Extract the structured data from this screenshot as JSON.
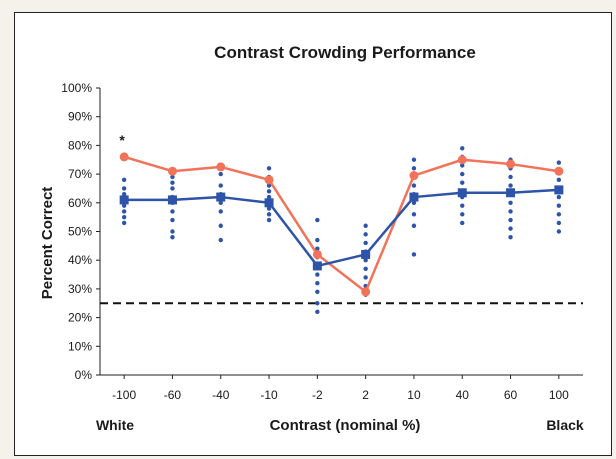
{
  "chart_data": {
    "type": "line",
    "title": "Contrast Crowding Performance",
    "xlabel": "Contrast (nominal %)",
    "ylabel": "Percent Correct",
    "left_end_label": "White",
    "right_end_label": "Black",
    "significance_marker": "*",
    "categories": [
      "-100",
      "-60",
      "-40",
      "-10",
      "-2",
      "2",
      "10",
      "40",
      "60",
      "100"
    ],
    "yticks": [
      "0%",
      "10%",
      "20%",
      "30%",
      "40%",
      "50%",
      "60%",
      "70%",
      "80%",
      "90%",
      "100%"
    ],
    "ylim": [
      0,
      100
    ],
    "chance_level": 25,
    "grid": false,
    "series": [
      {
        "color": "#f2735a",
        "marker": "circle",
        "values": [
          76,
          71,
          72.5,
          68,
          42,
          29,
          69.5,
          75,
          73.5,
          71
        ]
      },
      {
        "color": "#2d54a8",
        "marker": "square",
        "values": [
          61,
          61,
          62,
          60,
          38,
          42,
          62,
          63.5,
          63.5,
          64.5
        ]
      }
    ],
    "individual_points": {
      "color": "#2d54a8",
      "values": [
        [
          53,
          55,
          57,
          59,
          61,
          63,
          65,
          68
        ],
        [
          48,
          50,
          54,
          57,
          60,
          62,
          65,
          67,
          69,
          71
        ],
        [
          47,
          52,
          57,
          60,
          63,
          66,
          70
        ],
        [
          54,
          56,
          58,
          60,
          62,
          64,
          66,
          69,
          72
        ],
        [
          22,
          25,
          29,
          32,
          35,
          38,
          41,
          44,
          47,
          54
        ],
        [
          28,
          31,
          34,
          37,
          40,
          43,
          46,
          49,
          52
        ],
        [
          42,
          52,
          56,
          60,
          63,
          66,
          69,
          72,
          75
        ],
        [
          53,
          56,
          59,
          62,
          64,
          67,
          70,
          73,
          76,
          79
        ],
        [
          48,
          51,
          54,
          57,
          60,
          63,
          66,
          69,
          72,
          75
        ],
        [
          50,
          53,
          56,
          59,
          62,
          65,
          68,
          71,
          74
        ]
      ]
    }
  }
}
